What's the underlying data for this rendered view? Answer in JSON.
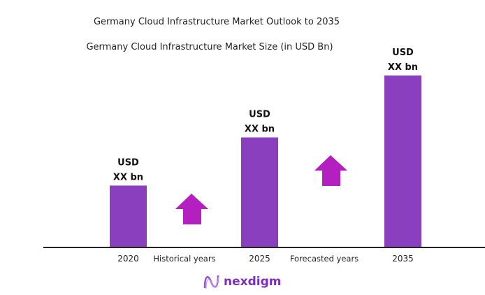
{
  "chart_data": {
    "type": "bar",
    "title": "Germany Cloud Infrastructure Market Outlook to 2035",
    "subtitle": "Germany Cloud Infrastructure Market Size (in USD Bn)",
    "categories": [
      "2020",
      "2025",
      "2035"
    ],
    "values_relative": [
      36,
      64,
      100
    ],
    "data_labels": [
      [
        "USD",
        "XX bn"
      ],
      [
        "USD",
        "XX bn"
      ],
      [
        "USD",
        "XX bn"
      ]
    ],
    "period_labels": [
      "Historical years",
      "Forecasted years"
    ],
    "grid": false,
    "colors": {
      "bar": "#8A40BE",
      "arrow": "#B41FBF",
      "axis": "#222222"
    }
  },
  "brand": {
    "name": "nexdigm",
    "color": "#7B2FBF"
  }
}
